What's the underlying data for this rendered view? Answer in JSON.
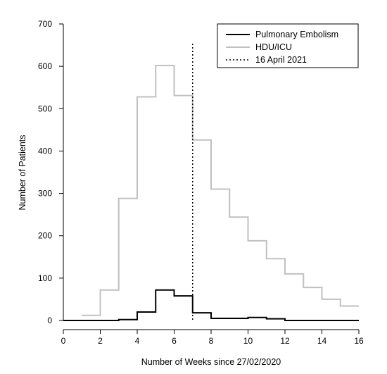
{
  "chart_data": {
    "type": "line",
    "step": true,
    "xlabel": "Number of Weeks since 27/02/2020",
    "ylabel": "Number of Patients",
    "xlim": [
      0,
      16
    ],
    "ylim": [
      0,
      700
    ],
    "xticks": [
      0,
      2,
      4,
      6,
      8,
      10,
      12,
      14,
      16
    ],
    "yticks": [
      0,
      100,
      200,
      300,
      400,
      500,
      600,
      700
    ],
    "grid": false,
    "legend_position": "top-right",
    "series": [
      {
        "name": "Pulmonary Embolism",
        "color": "#000000",
        "style": "solid",
        "x": [
          0,
          1,
          2,
          3,
          4,
          5,
          6,
          7,
          8,
          9,
          10,
          11,
          12,
          13,
          14,
          15
        ],
        "values": [
          0,
          0,
          0,
          2,
          20,
          72,
          58,
          18,
          5,
          5,
          7,
          4,
          0,
          0,
          0,
          0
        ]
      },
      {
        "name": "HDU/ICU",
        "color": "#c0c0c0",
        "style": "solid",
        "x": [
          1,
          2,
          3,
          4,
          5,
          6,
          7,
          8,
          9,
          10,
          11,
          12,
          13,
          14,
          15
        ],
        "values": [
          12,
          72,
          288,
          528,
          602,
          531,
          426,
          310,
          244,
          188,
          146,
          110,
          78,
          50,
          34
        ]
      },
      {
        "name": "16 April 2021",
        "color": "#000000",
        "style": "dotted",
        "vline_x": 7
      }
    ]
  }
}
